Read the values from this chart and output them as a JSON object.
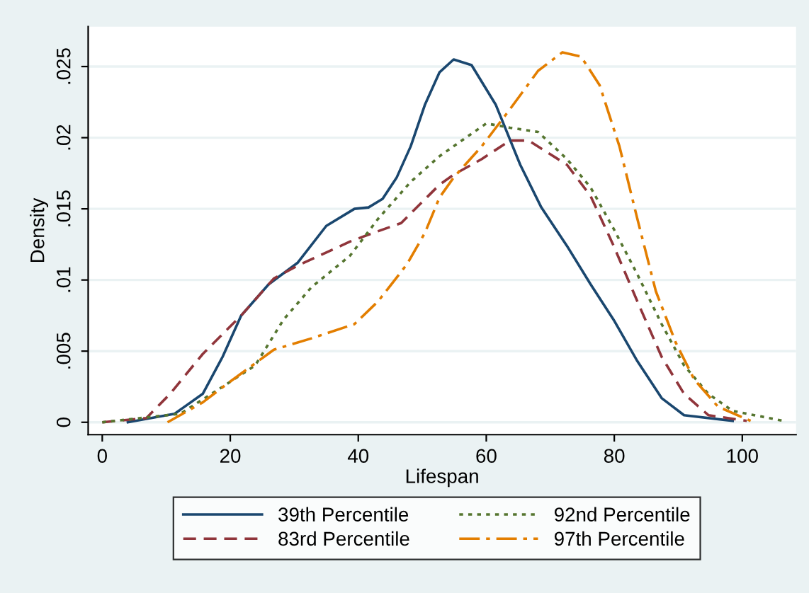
{
  "chart_data": {
    "type": "line",
    "xlabel": "Lifespan",
    "ylabel": "Density",
    "xlim": [
      -2.2,
      108.4
    ],
    "ylim": [
      -0.00087,
      0.0278
    ],
    "xticks": [
      0,
      20,
      40,
      60,
      80,
      100
    ],
    "yticks": [
      {
        "value": 0,
        "label": "0"
      },
      {
        "value": 0.005,
        "label": ".005"
      },
      {
        "value": 0.01,
        "label": ".01"
      },
      {
        "value": 0.015,
        "label": ".015"
      },
      {
        "value": 0.02,
        "label": ".02"
      },
      {
        "value": 0.025,
        "label": ".025"
      }
    ],
    "grid": "y",
    "legend": "bottom",
    "marker": "none",
    "series": [
      {
        "name": "39th Percentile",
        "color": "#1a476f",
        "line_style": "solid",
        "x": [
          4,
          11.3,
          15.7,
          18.8,
          21.7,
          26,
          30.5,
          35,
          39.4,
          41.6,
          43.8,
          46,
          48.2,
          50.4,
          52.7,
          54.9,
          57.7,
          61.5,
          65.3,
          68.6,
          72.6,
          76.3,
          79.9,
          83.6,
          87.4,
          90.9,
          98.5
        ],
        "values": [
          0,
          0.0006,
          0.002,
          0.0046,
          0.0075,
          0.0097,
          0.0112,
          0.0138,
          0.015,
          0.0151,
          0.0157,
          0.0172,
          0.0194,
          0.0223,
          0.0246,
          0.0255,
          0.0251,
          0.0223,
          0.0181,
          0.0151,
          0.0124,
          0.0097,
          0.0072,
          0.0043,
          0.0017,
          0.0005,
          0.0001
        ]
      },
      {
        "name": "83rd Percentile",
        "color": "#90353b",
        "line_style": "dashed",
        "x": [
          0,
          6.9,
          10.6,
          15.7,
          21.7,
          26.8,
          30.5,
          38.7,
          42.3,
          46.7,
          52.7,
          54.9,
          59.3,
          63.7,
          66.6,
          72.6,
          76.3,
          79.9,
          83.6,
          87.4,
          90.9,
          94.7,
          100.7
        ],
        "values": [
          0,
          0.0003,
          0.002,
          0.0048,
          0.0075,
          0.0101,
          0.011,
          0.0127,
          0.0133,
          0.014,
          0.0167,
          0.0174,
          0.0185,
          0.0198,
          0.0198,
          0.0181,
          0.0159,
          0.0124,
          0.0085,
          0.0046,
          0.002,
          0.0005,
          0.0001
        ]
      },
      {
        "name": "92nd Percentile",
        "color": "#55752f",
        "line_style": "dotted",
        "x": [
          0,
          12.2,
          19.5,
          23.9,
          28.3,
          32.7,
          38.7,
          43.1,
          48.2,
          52.7,
          54.9,
          60,
          63.7,
          68.1,
          72.6,
          76.3,
          79.9,
          83.6,
          87.4,
          90.9,
          94.7,
          98.5,
          106.4
        ],
        "values": [
          0,
          0.0006,
          0.0027,
          0.004,
          0.0072,
          0.0095,
          0.0117,
          0.0143,
          0.0169,
          0.0187,
          0.0194,
          0.021,
          0.0207,
          0.0204,
          0.0185,
          0.0165,
          0.0136,
          0.0104,
          0.0069,
          0.004,
          0.002,
          0.0008,
          0.0001
        ]
      },
      {
        "name": "97th Percentile",
        "color": "#e37e00",
        "line_style": "dashdot",
        "x": [
          10.2,
          15.7,
          20.1,
          26.8,
          32.7,
          39.4,
          43.1,
          47.6,
          50.4,
          52.7,
          54.9,
          59.3,
          63.7,
          68.1,
          71.9,
          74.8,
          77.7,
          80.8,
          83.6,
          86.5,
          89.6,
          92.5,
          96.2,
          101.3
        ],
        "values": [
          0,
          0.0014,
          0.0029,
          0.0051,
          0.0059,
          0.0069,
          0.0085,
          0.0111,
          0.0133,
          0.0158,
          0.0172,
          0.0194,
          0.022,
          0.0247,
          0.026,
          0.0257,
          0.0237,
          0.0194,
          0.0143,
          0.0092,
          0.0056,
          0.003,
          0.0011,
          0.0001
        ]
      }
    ]
  }
}
